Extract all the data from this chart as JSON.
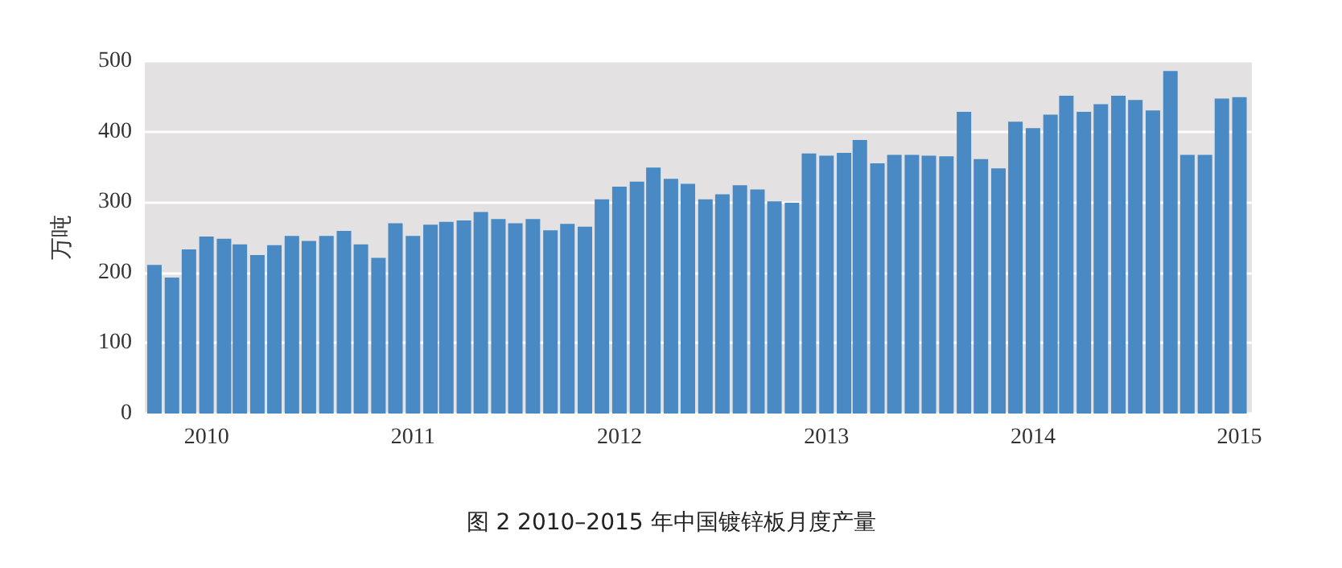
{
  "chart_data": {
    "type": "bar",
    "title": "图 2 2010–2015 年中国镀锌板月度产量",
    "ylabel": "万吨",
    "x": [
      "2009-10",
      "2009-11",
      "2009-12",
      "2010-01",
      "2010-02",
      "2010-03",
      "2010-04",
      "2010-05",
      "2010-06",
      "2010-07",
      "2010-08",
      "2010-09",
      "2010-10",
      "2010-11",
      "2010-12",
      "2011-01",
      "2011-02",
      "2011-03",
      "2011-04",
      "2011-05",
      "2011-06",
      "2011-07",
      "2011-08",
      "2011-09",
      "2011-10",
      "2011-11",
      "2011-12",
      "2012-01",
      "2012-02",
      "2012-03",
      "2012-04",
      "2012-05",
      "2012-06",
      "2012-07",
      "2012-08",
      "2012-09",
      "2012-10",
      "2012-11",
      "2012-12",
      "2013-01",
      "2013-02",
      "2013-03",
      "2013-04",
      "2013-05",
      "2013-06",
      "2013-07",
      "2013-08",
      "2013-09",
      "2013-10",
      "2013-11",
      "2013-12",
      "2014-01",
      "2014-02",
      "2014-03",
      "2014-04",
      "2014-05",
      "2014-06",
      "2014-07",
      "2014-08",
      "2014-09",
      "2014-10",
      "2014-11",
      "2014-12",
      "2015-01"
    ],
    "values": [
      211,
      193,
      233,
      251,
      248,
      240,
      225,
      239,
      252,
      245,
      252,
      259,
      240,
      221,
      270,
      252,
      268,
      272,
      274,
      286,
      276,
      270,
      276,
      260,
      269,
      265,
      304,
      322,
      329,
      349,
      333,
      326,
      304,
      311,
      324,
      318,
      301,
      299,
      369,
      366,
      370,
      388,
      355,
      367,
      367,
      366,
      365,
      428,
      361,
      348,
      414,
      405,
      424,
      451,
      428,
      439,
      451,
      445,
      430,
      486,
      367,
      367,
      447,
      449
    ],
    "color": "#4a8ac4",
    "xlim": [
      "2009-09-14",
      "2015-01-23"
    ],
    "xticks": [
      "2010",
      "2011",
      "2012",
      "2013",
      "2014",
      "2015"
    ],
    "ylim": [
      0,
      500
    ],
    "yticks": [
      0,
      100,
      200,
      300,
      400,
      500
    ],
    "grid": "y"
  }
}
